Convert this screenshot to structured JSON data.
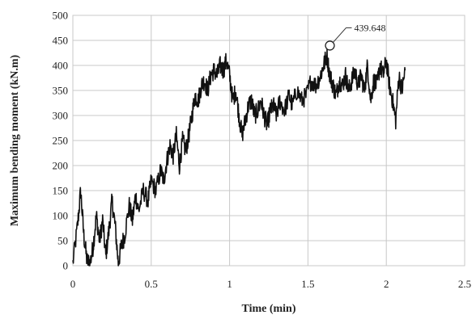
{
  "chart_data": {
    "type": "line",
    "title": "",
    "xlabel": "Time (min)",
    "ylabel": "Maximum bending moment (kN.m)",
    "xlim": [
      0,
      2.5
    ],
    "ylim": [
      0,
      500
    ],
    "xticks": [
      "0",
      "0.5",
      "1",
      "1.5",
      "2",
      "2.5"
    ],
    "yticks": [
      "0",
      "50",
      "100",
      "150",
      "200",
      "250",
      "300",
      "350",
      "400",
      "450",
      "500"
    ],
    "grid": true,
    "legend": "none",
    "line_color": "#111111",
    "series": [
      {
        "values_x": [
          0,
          0.03,
          0.05,
          0.07,
          0.09,
          0.11,
          0.13,
          0.15,
          0.17,
          0.19,
          0.21,
          0.23,
          0.25,
          0.27,
          0.29,
          0.31,
          0.33,
          0.36,
          0.38,
          0.4,
          0.42,
          0.45,
          0.48,
          0.5,
          0.53,
          0.56,
          0.58,
          0.6,
          0.62,
          0.64,
          0.66,
          0.68,
          0.7,
          0.72,
          0.74,
          0.76,
          0.78,
          0.8,
          0.82,
          0.84,
          0.86,
          0.88,
          0.9,
          0.92,
          0.94,
          0.96,
          0.98,
          1.0,
          1.02,
          1.04,
          1.06,
          1.08,
          1.1,
          1.12,
          1.14,
          1.16,
          1.18,
          1.2,
          1.22,
          1.24,
          1.26,
          1.28,
          1.3,
          1.32,
          1.35,
          1.38,
          1.4,
          1.43,
          1.46,
          1.49,
          1.52,
          1.55,
          1.58,
          1.6,
          1.62,
          1.64,
          1.66,
          1.68,
          1.7,
          1.72,
          1.74,
          1.76,
          1.78,
          1.8,
          1.82,
          1.84,
          1.86,
          1.88,
          1.9,
          1.92,
          1.94,
          1.96,
          1.98,
          2.0,
          2.02,
          2.04,
          2.06,
          2.08,
          2.1,
          2.12
        ],
        "values_y": [
          5,
          80,
          150,
          60,
          10,
          5,
          40,
          100,
          50,
          90,
          20,
          70,
          130,
          80,
          5,
          40,
          60,
          120,
          90,
          140,
          110,
          150,
          130,
          170,
          150,
          190,
          170,
          210,
          240,
          220,
          260,
          200,
          250,
          230,
          260,
          300,
          340,
          330,
          360,
          370,
          350,
          380,
          390,
          380,
          400,
          390,
          410,
          380,
          330,
          350,
          300,
          260,
          290,
          320,
          330,
          300,
          310,
          330,
          300,
          280,
          310,
          320,
          300,
          330,
          310,
          340,
          320,
          350,
          330,
          340,
          370,
          360,
          380,
          400,
          420,
          380,
          360,
          340,
          370,
          360,
          380,
          350,
          370,
          390,
          360,
          380,
          350,
          400,
          330,
          370,
          360,
          400,
          380,
          410,
          360,
          330,
          290,
          380,
          350,
          390
        ]
      }
    ],
    "annotations": [
      {
        "x": 1.64,
        "y": 439.648,
        "label": "439.648"
      }
    ]
  }
}
